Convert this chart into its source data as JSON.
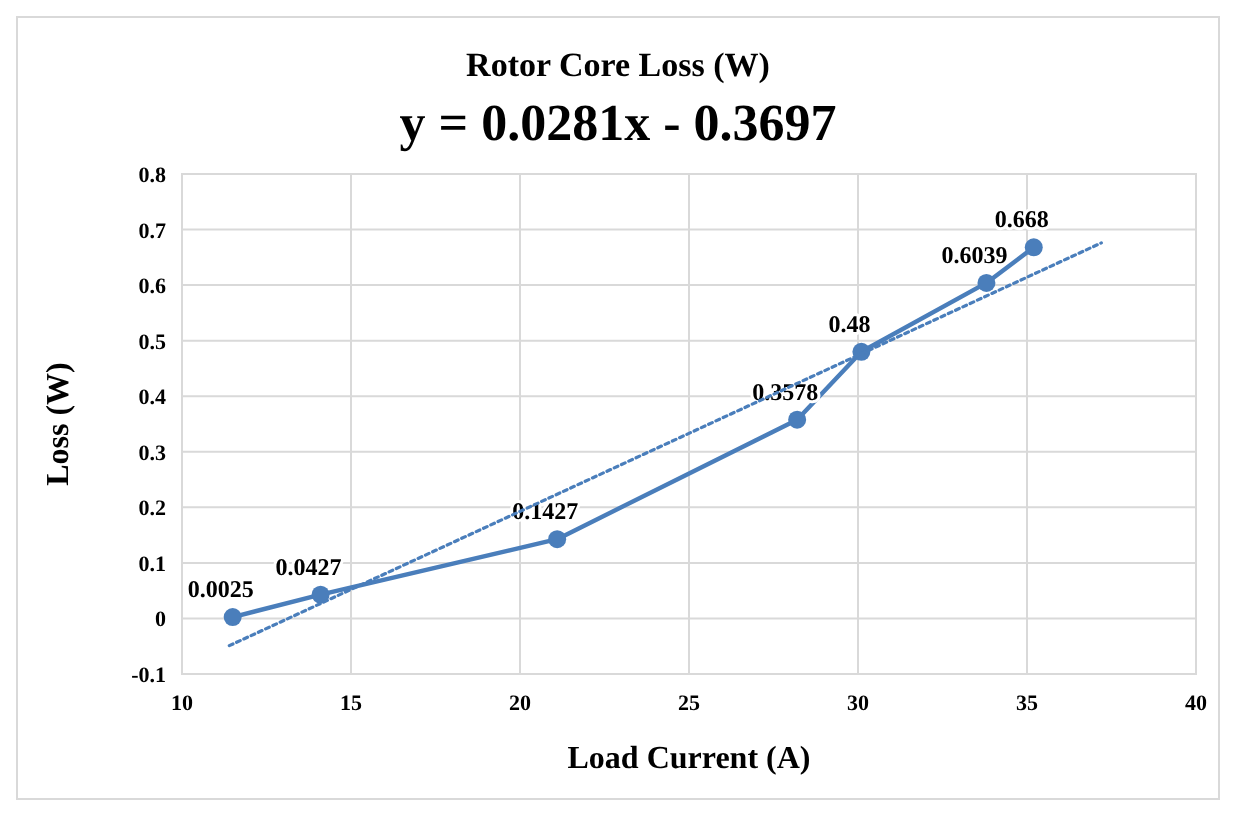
{
  "chart_data": {
    "type": "line",
    "title": "Rotor Core Loss (W)",
    "subtitle": "y = 0.0281x - 0.3697",
    "xlabel": "Load Current (A)",
    "ylabel": "Loss (W)",
    "series": [
      {
        "color": "#4a7ebb",
        "x": [
          11.5,
          14.1,
          21.1,
          28.2,
          30.1,
          33.8,
          35.2
        ],
        "values": [
          0.0025,
          0.0427,
          0.1427,
          0.3578,
          0.48,
          0.6039,
          0.668
        ],
        "marker": "circle",
        "line_style": "solid",
        "data_labels": true
      },
      {
        "color": "#4a7ebb",
        "x": [
          11.4,
          37.2
        ],
        "values": [
          -0.049,
          0.676
        ],
        "marker": "none",
        "line_style": "dotted"
      }
    ],
    "xlim": [
      10,
      40
    ],
    "xticks": [
      10,
      15,
      20,
      25,
      30,
      35,
      40
    ],
    "ylim": [
      -0.1,
      0.8
    ],
    "yticks": [
      -0.1,
      0,
      0.1,
      0.2,
      0.3,
      0.4,
      0.5,
      0.6,
      0.7,
      0.8
    ],
    "grid": true
  }
}
